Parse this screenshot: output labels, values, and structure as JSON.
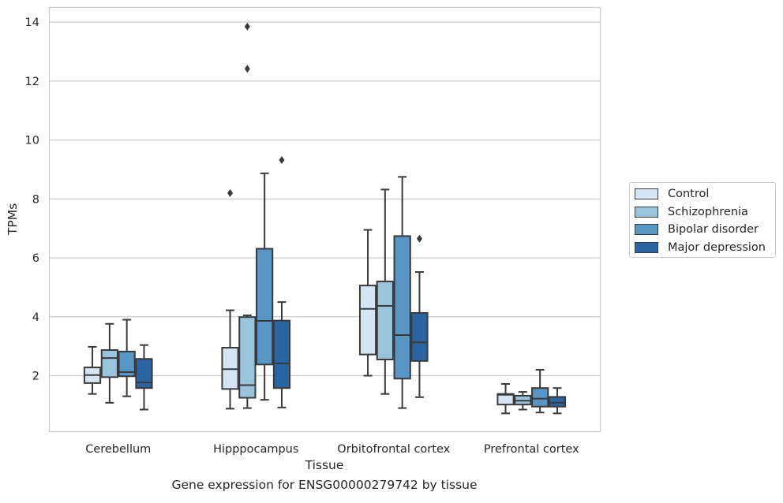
{
  "chart_data": {
    "type": "box",
    "title": "",
    "caption": "Gene expression for ENSG00000279742 by tissue",
    "xlabel": "Tissue",
    "ylabel": "TPMs",
    "ylim": [
      0.1,
      14.5
    ],
    "yticks": [
      2,
      4,
      6,
      8,
      10,
      12,
      14
    ],
    "grid": "horizontal",
    "legend_position": "right",
    "categories": [
      "Cerebellum",
      "Hipppocampus",
      "Orbitofrontal cortex",
      "Prefrontal cortex"
    ],
    "series": [
      {
        "name": "Control",
        "color": "#d6e5f3",
        "boxes": [
          {
            "whislo": 1.38,
            "q1": 1.75,
            "med": 2.02,
            "q3": 2.28,
            "whishi": 2.98,
            "fliers": []
          },
          {
            "whislo": 0.88,
            "q1": 1.55,
            "med": 2.22,
            "q3": 2.95,
            "whishi": 4.22,
            "fliers": [
              8.2
            ]
          },
          {
            "whislo": 2.0,
            "q1": 2.72,
            "med": 4.27,
            "q3": 5.06,
            "whishi": 6.95,
            "fliers": []
          },
          {
            "whislo": 0.72,
            "q1": 1.02,
            "med": 1.35,
            "q3": 1.38,
            "whishi": 1.72,
            "fliers": []
          }
        ]
      },
      {
        "name": "Schizophrenia",
        "color": "#9ac3de",
        "boxes": [
          {
            "whislo": 1.08,
            "q1": 1.95,
            "med": 2.6,
            "q3": 2.87,
            "whishi": 3.76,
            "fliers": []
          },
          {
            "whislo": 0.9,
            "q1": 1.25,
            "med": 1.68,
            "q3": 3.99,
            "whishi": 4.05,
            "fliers": [
              12.42,
              13.85
            ]
          },
          {
            "whislo": 1.38,
            "q1": 2.55,
            "med": 4.37,
            "q3": 5.2,
            "whishi": 8.32,
            "fliers": []
          },
          {
            "whislo": 0.85,
            "q1": 1.02,
            "med": 1.15,
            "q3": 1.32,
            "whishi": 1.45,
            "fliers": []
          }
        ]
      },
      {
        "name": "Bipolar disorder",
        "color": "#5796c5",
        "boxes": [
          {
            "whislo": 1.3,
            "q1": 1.98,
            "med": 2.12,
            "q3": 2.82,
            "whishi": 3.9,
            "fliers": []
          },
          {
            "whislo": 1.18,
            "q1": 2.38,
            "med": 3.86,
            "q3": 6.31,
            "whishi": 8.87,
            "fliers": []
          },
          {
            "whislo": 0.9,
            "q1": 1.9,
            "med": 3.38,
            "q3": 6.74,
            "whishi": 8.75,
            "fliers": []
          },
          {
            "whislo": 0.75,
            "q1": 0.95,
            "med": 1.22,
            "q3": 1.58,
            "whishi": 2.2,
            "fliers": []
          }
        ]
      },
      {
        "name": "Major depression",
        "color": "#2a65a3",
        "boxes": [
          {
            "whislo": 0.85,
            "q1": 1.58,
            "med": 1.77,
            "q3": 2.57,
            "whishi": 3.04,
            "fliers": []
          },
          {
            "whislo": 0.92,
            "q1": 1.58,
            "med": 2.42,
            "q3": 3.87,
            "whishi": 4.5,
            "fliers": [
              9.32
            ]
          },
          {
            "whislo": 1.27,
            "q1": 2.5,
            "med": 3.13,
            "q3": 4.13,
            "whishi": 5.52,
            "fliers": [
              6.65
            ]
          },
          {
            "whislo": 0.72,
            "q1": 0.95,
            "med": 1.08,
            "q3": 1.28,
            "whishi": 1.58,
            "fliers": []
          }
        ]
      }
    ]
  }
}
